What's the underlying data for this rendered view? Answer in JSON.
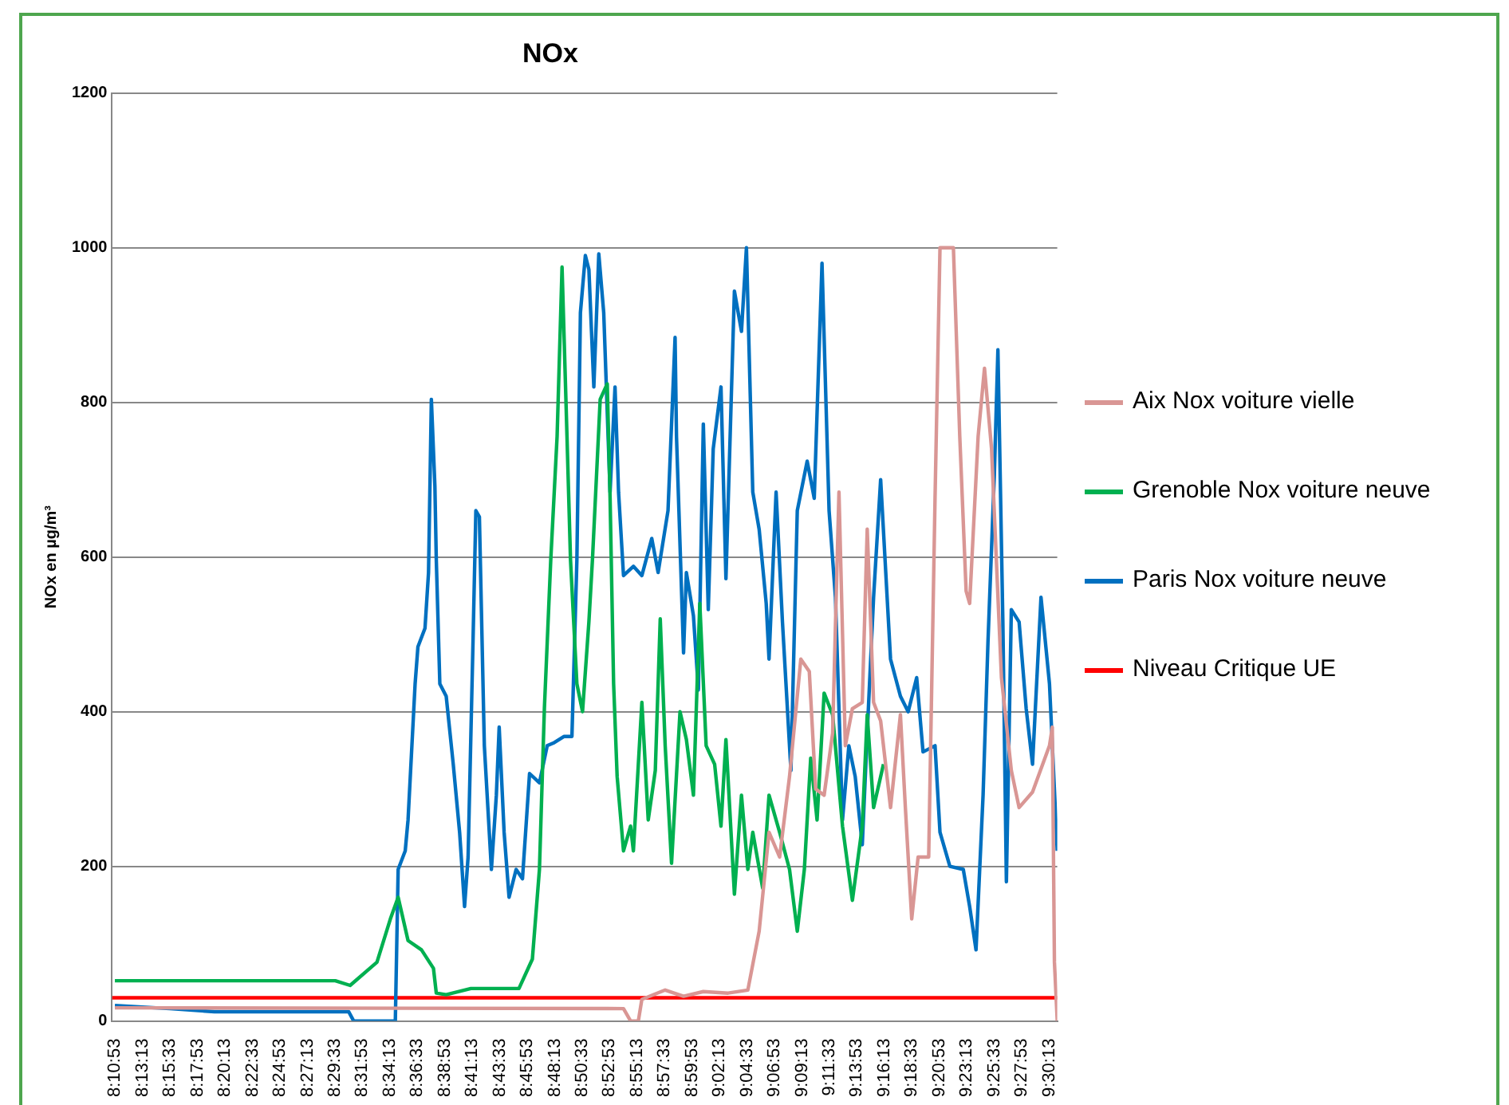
{
  "chart_data": {
    "type": "line",
    "title": "NOx",
    "ylabel": "NOx en µg/m³",
    "legend": "right",
    "grid": "y",
    "marker": "none",
    "line_style": "solid",
    "xlim": [
      8.177,
      9.515
    ],
    "ylim": [
      0,
      1200
    ],
    "yticks": [
      0,
      200,
      400,
      600,
      800,
      1000,
      1200
    ],
    "xticks": [
      {
        "value": 8.1814,
        "label": "8:10:53"
      },
      {
        "value": 8.2203,
        "label": "8:13:13"
      },
      {
        "value": 8.2592,
        "label": "8:15:33"
      },
      {
        "value": 8.2981,
        "label": "8:17:53"
      },
      {
        "value": 8.3369,
        "label": "8:20:13"
      },
      {
        "value": 8.3758,
        "label": "8:22:33"
      },
      {
        "value": 8.4147,
        "label": "8:24:53"
      },
      {
        "value": 8.4536,
        "label": "8:27:13"
      },
      {
        "value": 8.4925,
        "label": "8:29:33"
      },
      {
        "value": 8.5314,
        "label": "8:31:53"
      },
      {
        "value": 8.5703,
        "label": "8:34:13"
      },
      {
        "value": 8.6092,
        "label": "8:36:33"
      },
      {
        "value": 8.6481,
        "label": "8:38:53"
      },
      {
        "value": 8.6869,
        "label": "8:41:13"
      },
      {
        "value": 8.7258,
        "label": "8:43:33"
      },
      {
        "value": 8.7647,
        "label": "8:45:53"
      },
      {
        "value": 8.8036,
        "label": "8:48:13"
      },
      {
        "value": 8.8425,
        "label": "8:50:33"
      },
      {
        "value": 8.8814,
        "label": "8:52:53"
      },
      {
        "value": 8.9203,
        "label": "8:55:13"
      },
      {
        "value": 8.9592,
        "label": "8:57:33"
      },
      {
        "value": 8.9981,
        "label": "8:59:53"
      },
      {
        "value": 9.0369,
        "label": "9:02:13"
      },
      {
        "value": 9.0758,
        "label": "9:04:33"
      },
      {
        "value": 9.1147,
        "label": "9:06:53"
      },
      {
        "value": 9.1536,
        "label": "9:09:13"
      },
      {
        "value": 9.1925,
        "label": "9:11:33"
      },
      {
        "value": 9.2314,
        "label": "9:13:53"
      },
      {
        "value": 9.2703,
        "label": "9:16:13"
      },
      {
        "value": 9.3092,
        "label": "9:18:33"
      },
      {
        "value": 9.3481,
        "label": "9:20:53"
      },
      {
        "value": 9.3869,
        "label": "9:23:13"
      },
      {
        "value": 9.4258,
        "label": "9:25:33"
      },
      {
        "value": 9.4647,
        "label": "9:27:53"
      },
      {
        "value": 9.5036,
        "label": "9:30:13"
      }
    ],
    "series": [
      {
        "name": "Aix Nox voiture vielle",
        "color": "#d99694",
        "x": [
          8.181,
          8.901,
          8.911,
          8.922,
          8.927,
          8.96,
          8.986,
          9.014,
          9.049,
          9.077,
          9.093,
          9.107,
          9.122,
          9.136,
          9.152,
          9.164,
          9.173,
          9.185,
          9.197,
          9.206,
          9.215,
          9.225,
          9.239,
          9.246,
          9.255,
          9.265,
          9.279,
          9.293,
          9.3,
          9.309,
          9.318,
          9.333,
          9.342,
          9.349,
          9.368,
          9.377,
          9.386,
          9.391,
          9.403,
          9.412,
          9.422,
          9.436,
          9.45,
          9.461,
          9.48,
          9.504,
          9.508,
          9.511,
          9.515
        ],
        "values": [
          17,
          16,
          0,
          0,
          28,
          40,
          32,
          38,
          36,
          40,
          116,
          244,
          212,
          316,
          468,
          452,
          300,
          292,
          372,
          684,
          356,
          404,
          412,
          636,
          412,
          388,
          276,
          396,
          276,
          132,
          212,
          212,
          676,
          1000,
          1000,
          756,
          556,
          540,
          756,
          844,
          740,
          444,
          324,
          276,
          296,
          356,
          380,
          76,
          0
        ]
      },
      {
        "name": "Grenoble Nox voiture neuve",
        "color": "#00b050",
        "x": [
          8.181,
          8.493,
          8.514,
          8.552,
          8.571,
          8.582,
          8.596,
          8.615,
          8.632,
          8.636,
          8.65,
          8.685,
          8.753,
          8.772,
          8.782,
          8.789,
          8.798,
          8.807,
          8.814,
          8.821,
          8.826,
          8.835,
          8.843,
          8.852,
          8.857,
          8.868,
          8.878,
          8.882,
          8.887,
          8.892,
          8.901,
          8.911,
          8.915,
          8.927,
          8.936,
          8.946,
          8.953,
          8.96,
          8.969,
          8.981,
          8.99,
          9.0,
          9.009,
          9.018,
          9.03,
          9.039,
          9.046,
          9.058,
          9.068,
          9.077,
          9.084,
          9.098,
          9.107,
          9.122,
          9.136,
          9.147,
          9.157,
          9.166,
          9.175,
          9.185,
          9.197,
          9.211,
          9.225,
          9.239,
          9.246,
          9.255,
          9.269
        ],
        "values": [
          52,
          52,
          46,
          76,
          132,
          160,
          104,
          92,
          68,
          36,
          34,
          42,
          42,
          80,
          196,
          404,
          596,
          756,
          975,
          756,
          596,
          436,
          400,
          516,
          596,
          804,
          824,
          676,
          436,
          316,
          220,
          252,
          220,
          412,
          260,
          324,
          520,
          356,
          204,
          400,
          364,
          292,
          540,
          356,
          332,
          252,
          364,
          164,
          292,
          196,
          244,
          172,
          292,
          244,
          196,
          116,
          196,
          340,
          260,
          424,
          396,
          252,
          156,
          252,
          396,
          276,
          332
        ]
      },
      {
        "name": "Paris Nox voiture neuve",
        "color": "#0070c0",
        "x": [
          8.181,
          8.259,
          8.322,
          8.512,
          8.519,
          8.578,
          8.582,
          8.592,
          8.596,
          8.606,
          8.61,
          8.62,
          8.625,
          8.629,
          8.634,
          8.636,
          8.641,
          8.65,
          8.66,
          8.669,
          8.676,
          8.681,
          8.688,
          8.692,
          8.697,
          8.704,
          8.714,
          8.721,
          8.725,
          8.732,
          8.739,
          8.749,
          8.758,
          8.768,
          8.782,
          8.793,
          8.803,
          8.817,
          8.828,
          8.835,
          8.84,
          8.847,
          8.852,
          8.859,
          8.866,
          8.873,
          8.882,
          8.889,
          8.894,
          8.901,
          8.915,
          8.927,
          8.941,
          8.95,
          8.964,
          8.974,
          8.976,
          8.986,
          8.99,
          9.0,
          9.007,
          9.014,
          9.021,
          9.028,
          9.039,
          9.046,
          9.058,
          9.068,
          9.075,
          9.084,
          9.093,
          9.103,
          9.107,
          9.117,
          9.126,
          9.138,
          9.147,
          9.161,
          9.171,
          9.182,
          9.192,
          9.201,
          9.211,
          9.22,
          9.229,
          9.239,
          9.246,
          9.255,
          9.265,
          9.279,
          9.293,
          9.304,
          9.316,
          9.325,
          9.342,
          9.349,
          9.363,
          9.382,
          9.391,
          9.4,
          9.41,
          9.417,
          9.426,
          9.431,
          9.438,
          9.443,
          9.45,
          9.461,
          9.471,
          9.48,
          9.492,
          9.504,
          9.515
        ],
        "values": [
          20,
          16,
          12,
          12,
          0,
          0,
          196,
          220,
          260,
          436,
          484,
          508,
          580,
          804,
          692,
          596,
          436,
          420,
          332,
          244,
          148,
          212,
          492,
          660,
          652,
          356,
          196,
          292,
          380,
          244,
          160,
          196,
          184,
          320,
          308,
          356,
          360,
          368,
          368,
          596,
          916,
          990,
          972,
          820,
          992,
          916,
          684,
          820,
          684,
          576,
          588,
          576,
          624,
          580,
          660,
          884,
          756,
          476,
          580,
          524,
          428,
          772,
          532,
          740,
          820,
          572,
          944,
          892,
          1000,
          684,
          636,
          540,
          468,
          684,
          516,
          324,
          660,
          724,
          676,
          980,
          660,
          548,
          260,
          356,
          316,
          228,
          372,
          548,
          700,
          468,
          420,
          400,
          444,
          348,
          356,
          244,
          200,
          196,
          148,
          92,
          292,
          492,
          708,
          868,
          516,
          180,
          532,
          516,
          404,
          332,
          548,
          436,
          220
        ]
      }
    ],
    "ref_lines": [
      {
        "axis": "y",
        "value": 30,
        "label": "Niveau Critique UE",
        "color": "#ff0000"
      }
    ]
  }
}
